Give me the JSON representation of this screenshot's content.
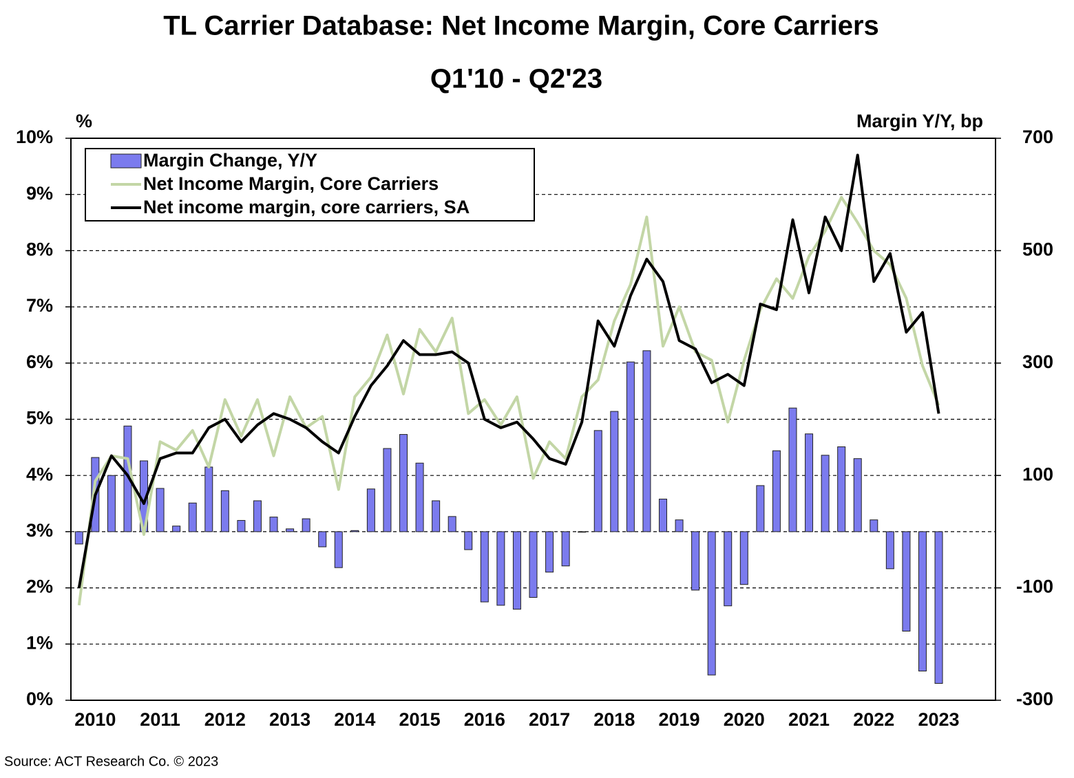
{
  "chart_data": {
    "type": "bar_line",
    "title": "TL Carrier Database: Net Income Margin, Core Carriers",
    "subtitle": "Q1'10 - Q2'23",
    "y_label": "%",
    "y2_label": "Margin Y/Y, bp",
    "source": "Source:  ACT Research  Co. © 2023",
    "categories": [
      null,
      "2010",
      null,
      null,
      null,
      "2011",
      null,
      null,
      null,
      "2012",
      null,
      null,
      null,
      "2013",
      null,
      null,
      null,
      "2014",
      null,
      null,
      null,
      "2015",
      null,
      null,
      null,
      "2016",
      null,
      null,
      null,
      "2017",
      null,
      null,
      null,
      "2018",
      null,
      null,
      null,
      "2019",
      null,
      null,
      null,
      "2020",
      null,
      null,
      null,
      "2021",
      null,
      null,
      null,
      "2022",
      null,
      null,
      null,
      "2023"
    ],
    "ylim": [
      0,
      10
    ],
    "yticks": [
      {
        "value": 0,
        "label": "0%"
      },
      {
        "value": 1,
        "label": "1%"
      },
      {
        "value": 2,
        "label": "2%"
      },
      {
        "value": 3,
        "label": "3%"
      },
      {
        "value": 4,
        "label": "4%"
      },
      {
        "value": 5,
        "label": "5%"
      },
      {
        "value": 6,
        "label": "6%"
      },
      {
        "value": 7,
        "label": "7%"
      },
      {
        "value": 8,
        "label": "8%"
      },
      {
        "value": 9,
        "label": "9%"
      },
      {
        "value": 10,
        "label": "10%"
      }
    ],
    "y2lim": [
      -300,
      700
    ],
    "y2ticks": [
      -300,
      -100,
      100,
      300,
      500,
      700
    ],
    "grid": true,
    "legend": "upper left",
    "series": [
      {
        "name": "Margin Change, Y/Y",
        "type": "bar",
        "axis": "y2",
        "color": "#7b7bee",
        "values": [
          -22,
          132,
          100,
          188,
          126,
          77,
          10,
          51,
          115,
          73,
          20,
          55,
          26,
          5,
          23,
          -27,
          -64,
          2,
          76,
          148,
          173,
          122,
          55,
          27,
          -32,
          -125,
          -131,
          -138,
          -117,
          -72,
          -61,
          -1,
          180,
          214,
          302,
          322,
          58,
          21,
          -104,
          -255,
          -132,
          -94,
          82,
          144,
          220,
          174,
          136,
          151,
          130,
          21,
          -66,
          -177,
          -248,
          -270
        ]
      },
      {
        "name": "Net Income Margin, Core Carriers",
        "type": "line",
        "color": "#c3d6a6",
        "values": [
          1.69,
          3.9,
          4.35,
          4.3,
          2.95,
          4.6,
          4.45,
          4.8,
          4.15,
          5.35,
          4.7,
          5.35,
          4.35,
          5.4,
          4.85,
          5.05,
          3.75,
          5.4,
          5.75,
          6.5,
          5.45,
          6.6,
          6.2,
          6.8,
          5.1,
          5.35,
          4.9,
          5.4,
          3.95,
          4.6,
          4.3,
          5.4,
          5.7,
          6.75,
          7.4,
          8.6,
          6.3,
          7.0,
          6.2,
          6.05,
          4.95,
          6.05,
          6.95,
          7.5,
          7.15,
          7.9,
          8.35,
          8.95,
          8.5,
          8.0,
          7.75,
          7.15,
          5.95,
          5.25
        ]
      },
      {
        "name": "Net income margin, core carriers, SA",
        "type": "line",
        "color": "#000000",
        "values": [
          2.0,
          3.65,
          4.35,
          4.0,
          3.5,
          4.3,
          4.4,
          4.4,
          4.85,
          5.0,
          4.6,
          4.9,
          5.1,
          5.0,
          4.85,
          4.6,
          4.4,
          5.05,
          5.6,
          5.95,
          6.4,
          6.15,
          6.15,
          6.2,
          6.0,
          5.0,
          4.85,
          4.95,
          4.65,
          4.3,
          4.2,
          4.95,
          6.75,
          6.3,
          7.2,
          7.85,
          7.45,
          6.4,
          6.25,
          5.65,
          5.8,
          5.6,
          7.05,
          6.95,
          8.55,
          7.25,
          8.6,
          8.0,
          9.7,
          7.45,
          7.95,
          6.55,
          6.9,
          5.1
        ]
      }
    ]
  }
}
